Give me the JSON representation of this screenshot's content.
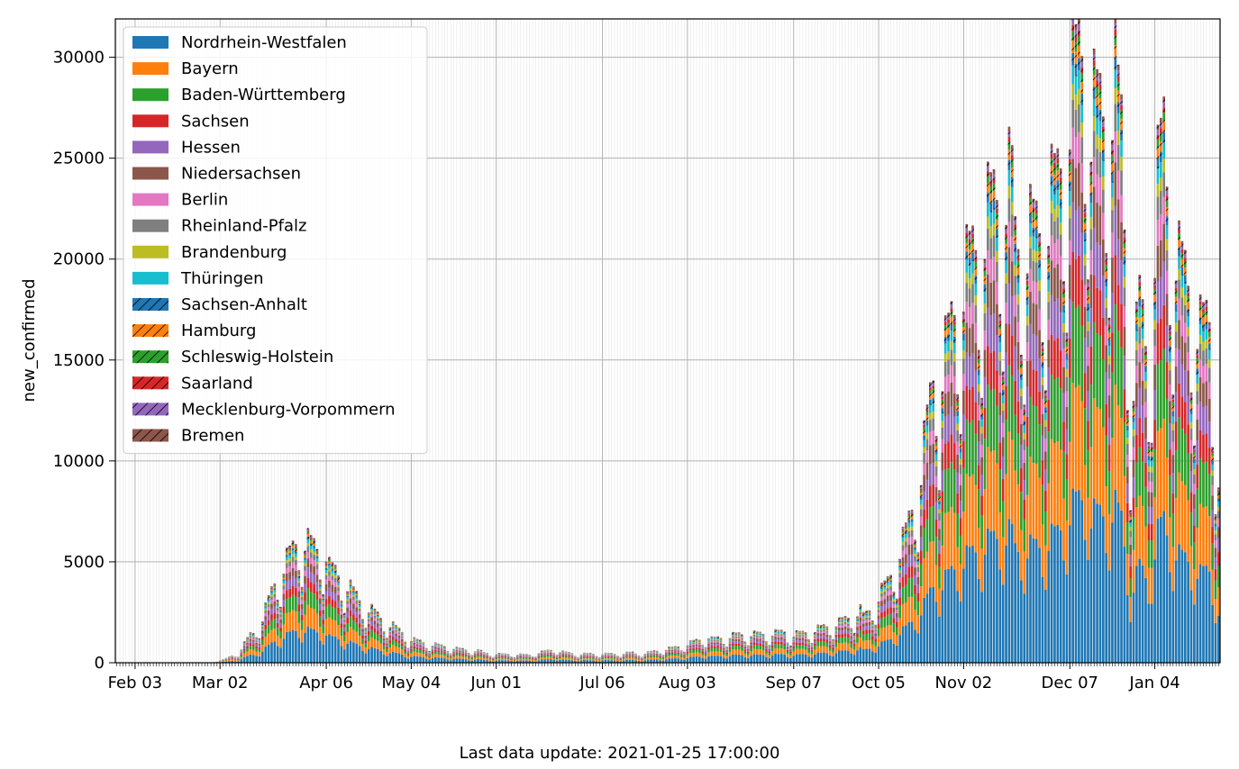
{
  "chart_data": {
    "type": "bar",
    "stacked": true,
    "ylabel": "new_confirmed",
    "ylim": [
      0,
      31900
    ],
    "yticks": [
      0,
      5000,
      10000,
      15000,
      20000,
      25000,
      30000
    ],
    "xrange": [
      "2020-01-28",
      "2021-01-25"
    ],
    "xticks": [
      {
        "date": "2020-02-03",
        "label": "Feb 03"
      },
      {
        "date": "2020-03-02",
        "label": "Mar 02"
      },
      {
        "date": "2020-04-06",
        "label": "Apr 06"
      },
      {
        "date": "2020-05-04",
        "label": "May 04"
      },
      {
        "date": "2020-06-01",
        "label": "Jun 01"
      },
      {
        "date": "2020-07-06",
        "label": "Jul 06"
      },
      {
        "date": "2020-08-03",
        "label": "Aug 03"
      },
      {
        "date": "2020-09-07",
        "label": "Sep 07"
      },
      {
        "date": "2020-10-05",
        "label": "Oct 05"
      },
      {
        "date": "2020-11-02",
        "label": "Nov 02"
      },
      {
        "date": "2020-12-07",
        "label": "Dec 07"
      },
      {
        "date": "2021-01-04",
        "label": "Jan 04"
      }
    ],
    "grid": true,
    "legend_position": "upper-left",
    "total_anchors": [
      [
        "2020-01-28",
        0
      ],
      [
        "2020-02-28",
        0
      ],
      [
        "2020-03-03",
        150
      ],
      [
        "2020-03-08",
        450
      ],
      [
        "2020-03-12",
        1300
      ],
      [
        "2020-03-16",
        2300
      ],
      [
        "2020-03-20",
        4000
      ],
      [
        "2020-03-24",
        5000
      ],
      [
        "2020-03-28",
        6000
      ],
      [
        "2020-04-01",
        5500
      ],
      [
        "2020-04-05",
        5100
      ],
      [
        "2020-04-09",
        4700
      ],
      [
        "2020-04-13",
        3900
      ],
      [
        "2020-04-18",
        2900
      ],
      [
        "2020-04-25",
        2000
      ],
      [
        "2020-05-02",
        1300
      ],
      [
        "2020-05-10",
        950
      ],
      [
        "2020-05-20",
        650
      ],
      [
        "2020-06-01",
        450
      ],
      [
        "2020-06-12",
        380
      ],
      [
        "2020-06-20",
        620
      ],
      [
        "2020-06-28",
        450
      ],
      [
        "2020-07-10",
        420
      ],
      [
        "2020-07-20",
        500
      ],
      [
        "2020-08-01",
        800
      ],
      [
        "2020-08-10",
        1200
      ],
      [
        "2020-08-20",
        1400
      ],
      [
        "2020-08-30",
        1350
      ],
      [
        "2020-09-10",
        1500
      ],
      [
        "2020-09-22",
        1900
      ],
      [
        "2020-10-01",
        2500
      ],
      [
        "2020-10-08",
        4000
      ],
      [
        "2020-10-14",
        6200
      ],
      [
        "2020-10-19",
        9000
      ],
      [
        "2020-10-24",
        14000
      ],
      [
        "2020-10-28",
        16500
      ],
      [
        "2020-10-31",
        18300
      ],
      [
        "2020-11-07",
        20500
      ],
      [
        "2020-11-14",
        22000
      ],
      [
        "2020-11-21",
        21500
      ],
      [
        "2020-11-28",
        21500
      ],
      [
        "2020-12-03",
        23000
      ],
      [
        "2020-12-08",
        27000
      ],
      [
        "2020-12-12",
        28500
      ],
      [
        "2020-12-18",
        28000
      ],
      [
        "2020-12-22",
        28500
      ],
      [
        "2020-12-24",
        26000
      ],
      [
        "2020-12-27",
        12000
      ],
      [
        "2020-12-30",
        17000
      ],
      [
        "2021-01-02",
        14000
      ],
      [
        "2021-01-05",
        22000
      ],
      [
        "2021-01-08",
        25000
      ],
      [
        "2021-01-12",
        20000
      ],
      [
        "2021-01-15",
        19000
      ],
      [
        "2021-01-19",
        16000
      ],
      [
        "2021-01-22",
        16500
      ],
      [
        "2021-01-25",
        9000
      ]
    ],
    "weekday_factors": [
      0.6,
      0.9,
      1.1,
      1.06,
      1.05,
      0.97,
      0.72
    ],
    "series": [
      {
        "name": "Nordrhein-Westfalen",
        "color": "#1f77b4",
        "hatched": false,
        "share": 0.28
      },
      {
        "name": "Bayern",
        "color": "#ff7f0e",
        "hatched": false,
        "share": 0.17
      },
      {
        "name": "Baden-Württemberg",
        "color": "#2ca02c",
        "hatched": false,
        "share": 0.13
      },
      {
        "name": "Sachsen",
        "color": "#d62728",
        "hatched": false,
        "share": 0.08
      },
      {
        "name": "Hessen",
        "color": "#9467bd",
        "hatched": false,
        "share": 0.08
      },
      {
        "name": "Niedersachsen",
        "color": "#8c564b",
        "hatched": false,
        "share": 0.07
      },
      {
        "name": "Berlin",
        "color": "#e377c2",
        "hatched": false,
        "share": 0.05
      },
      {
        "name": "Rheinland-Pfalz",
        "color": "#7f7f7f",
        "hatched": false,
        "share": 0.045
      },
      {
        "name": "Brandenburg",
        "color": "#bcbd22",
        "hatched": false,
        "share": 0.025
      },
      {
        "name": "Thüringen",
        "color": "#17becf",
        "hatched": false,
        "share": 0.03
      },
      {
        "name": "Sachsen-Anhalt",
        "color": "#1f77b4",
        "hatched": true,
        "share": 0.02
      },
      {
        "name": "Hamburg",
        "color": "#ff7f0e",
        "hatched": true,
        "share": 0.02
      },
      {
        "name": "Schleswig-Holstein",
        "color": "#2ca02c",
        "hatched": true,
        "share": 0.015
      },
      {
        "name": "Saarland",
        "color": "#d62728",
        "hatched": true,
        "share": 0.01
      },
      {
        "name": "Mecklenburg-Vorpommern",
        "color": "#9467bd",
        "hatched": true,
        "share": 0.01
      },
      {
        "name": "Bremen",
        "color": "#8c564b",
        "hatched": true,
        "share": 0.01
      }
    ]
  },
  "footer": {
    "last_update": "Last data update: 2021-01-25 17:00:00"
  }
}
